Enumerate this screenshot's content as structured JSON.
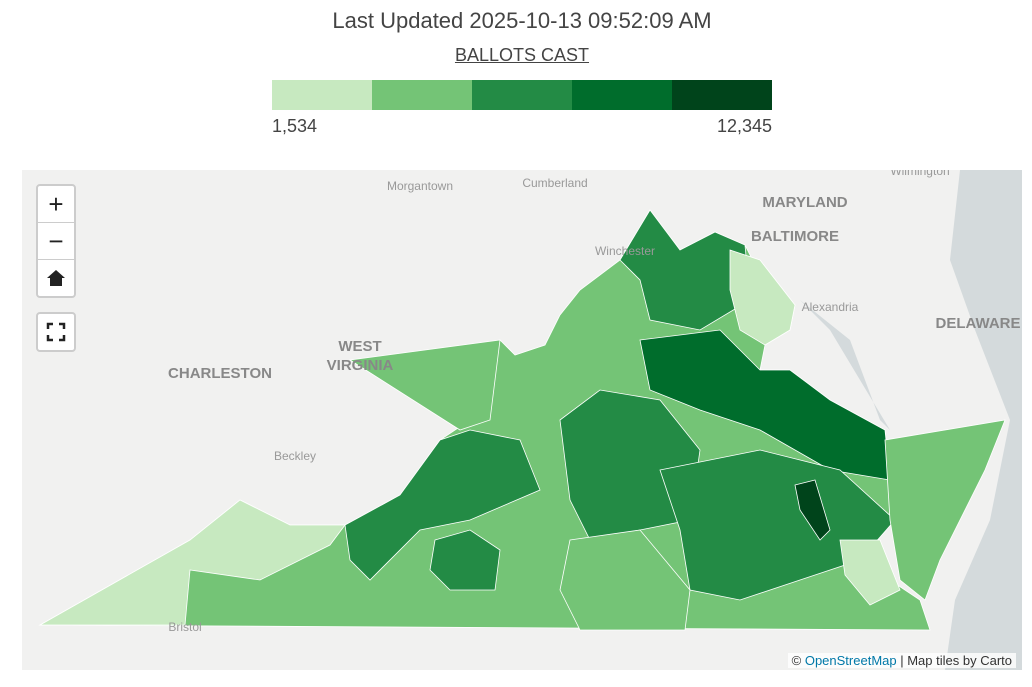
{
  "header": {
    "title": "Last Updated 2025-10-13 09:52:09 AM",
    "subtitle": "BALLOTS CAST"
  },
  "legend": {
    "colors": [
      "#c7e9c0",
      "#74c476",
      "#238b45",
      "#006d2c",
      "#00441b"
    ],
    "min": {
      "value": 1534,
      "label": "1,534"
    },
    "max": {
      "value": 12345,
      "label": "12,345"
    }
  },
  "controls": {
    "zoom_in": "+",
    "zoom_out": "−"
  },
  "map": {
    "places": [
      "Morgantown",
      "Cumberland",
      "MARYLAND",
      "BALTIMORE",
      "Winchester",
      "Alexandria",
      "DELAWARE",
      "WEST",
      "VIRGINIA",
      "CHARLESTON",
      "Beckley",
      "Bristol",
      "Wilmington"
    ]
  },
  "attribution": {
    "prefix": "©",
    "link": "OpenStreetMap",
    "suffix": "| Map tiles by Carto"
  }
}
